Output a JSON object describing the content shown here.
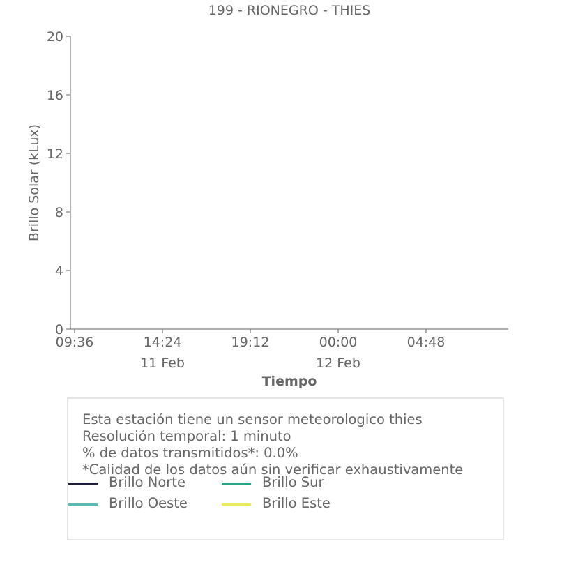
{
  "chart_data": {
    "type": "line",
    "title": "199 - RIONEGRO - THIES",
    "xlabel": "Tiempo",
    "ylabel": "Brillo Solar (kLux)",
    "ylim": [
      0,
      20
    ],
    "yticks": [
      0,
      4,
      8,
      12,
      16,
      20
    ],
    "xticks": [
      "09:36",
      "14:24",
      "19:12",
      "00:00",
      "04:48"
    ],
    "xtick_dates": [
      "",
      "11 Feb",
      "",
      "12 Feb",
      ""
    ],
    "grid": false,
    "legend_position": "bottom",
    "series": [
      {
        "name": "Brillo Norte",
        "color": "#1f1f3d",
        "values": []
      },
      {
        "name": "Brillo Sur",
        "color": "#24a584",
        "values": []
      },
      {
        "name": "Brillo Oeste",
        "color": "#5ab9b4",
        "values": []
      },
      {
        "name": "Brillo Este",
        "color": "#ece95a",
        "values": []
      }
    ]
  },
  "info": {
    "lines": [
      "Esta estación tiene un sensor meteorologico thies",
      "Resolución temporal: 1 minuto",
      "% de datos transmitidos*: 0.0%",
      "*Calidad de los datos aún sin verificar exhaustivamente"
    ]
  }
}
